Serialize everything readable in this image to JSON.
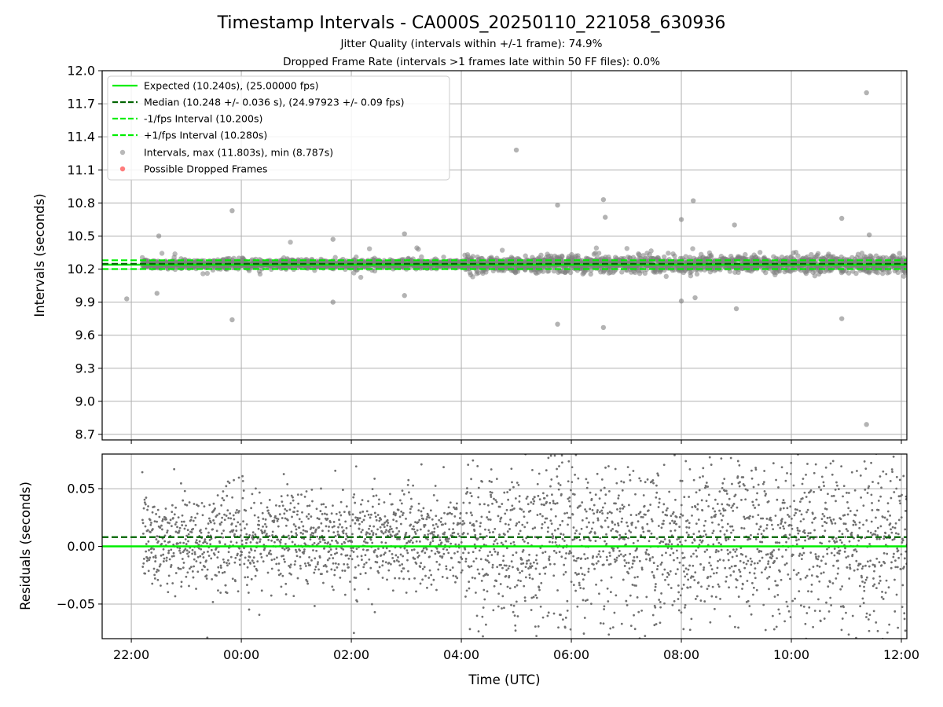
{
  "chart_data": [
    {
      "type": "scatter",
      "title": "Timestamp Intervals - CA000S_20250110_221058_630936",
      "subtitle_1": "Jitter Quality (intervals within +/-1 frame): 74.9%",
      "subtitle_2": "Dropped Frame Rate (intervals >1 frames late within 50 FF files): 0.0%",
      "xlabel": "",
      "ylabel": "Intervals (seconds)",
      "ylim": [
        8.65,
        12.0
      ],
      "xlim_hours_from_midnight_jan10": [
        21.47,
        36.1
      ],
      "yticks": [
        "8.7",
        "9.0",
        "9.3",
        "9.6",
        "9.9",
        "10.2",
        "10.5",
        "10.8",
        "11.1",
        "11.4",
        "11.7",
        "12.0"
      ],
      "grid": true,
      "legend_position": "upper left",
      "colors": {
        "expected": "#00ee00",
        "median": "#006400",
        "interval_bounds": "#00ee00",
        "points": "#808080",
        "dropped": "#ff4444"
      },
      "series": [
        {
          "name": "Expected (10.240s), (25.00000 fps)",
          "kind": "hline",
          "value": 10.24
        },
        {
          "name": "Median (10.248 +/- 0.036 s), (24.97923 +/- 0.09 fps)",
          "kind": "hline-dashed",
          "value": 10.248
        },
        {
          "name": "-1/fps Interval (10.200s)",
          "kind": "hline-dashed",
          "value": 10.2
        },
        {
          "name": "+1/fps Interval (10.280s)",
          "kind": "hline-dashed",
          "value": 10.28
        },
        {
          "name": "Intervals, max (11.803s), min (8.787s)",
          "kind": "scatter",
          "outliers": [
            {
              "t": "21:55",
              "y": 9.93
            },
            {
              "t": "22:30",
              "y": 10.5
            },
            {
              "t": "22:28",
              "y": 9.98
            },
            {
              "t": "23:50",
              "y": 10.73
            },
            {
              "t": "23:50",
              "y": 9.74
            },
            {
              "t": "01:40",
              "y": 9.9
            },
            {
              "t": "01:40",
              "y": 10.47
            },
            {
              "t": "02:58",
              "y": 10.52
            },
            {
              "t": "02:58",
              "y": 9.96
            },
            {
              "t": "05:00",
              "y": 11.28
            },
            {
              "t": "05:45",
              "y": 10.78
            },
            {
              "t": "05:45",
              "y": 9.7
            },
            {
              "t": "06:35",
              "y": 10.83
            },
            {
              "t": "06:37",
              "y": 10.67
            },
            {
              "t": "06:35",
              "y": 9.67
            },
            {
              "t": "08:00",
              "y": 10.65
            },
            {
              "t": "08:00",
              "y": 9.91
            },
            {
              "t": "08:13",
              "y": 10.82
            },
            {
              "t": "08:15",
              "y": 9.94
            },
            {
              "t": "08:58",
              "y": 10.6
            },
            {
              "t": "09:00",
              "y": 9.84
            },
            {
              "t": "10:55",
              "y": 10.66
            },
            {
              "t": "10:55",
              "y": 9.75
            },
            {
              "t": "11:22",
              "y": 11.8
            },
            {
              "t": "11:22",
              "y": 8.79
            },
            {
              "t": "11:25",
              "y": 10.51
            }
          ]
        },
        {
          "name": "Possible Dropped Frames",
          "kind": "scatter",
          "values": []
        }
      ]
    },
    {
      "type": "scatter",
      "xlabel": "Time (UTC)",
      "ylabel": "Residuals (seconds)",
      "ylim": [
        -0.08,
        0.08
      ],
      "yticks": [
        "−0.05",
        "0.00",
        "0.05"
      ],
      "xticks": [
        "22:00",
        "00:00",
        "02:00",
        "04:00",
        "06:00",
        "08:00",
        "10:00",
        "12:00"
      ],
      "grid": true,
      "series": [
        {
          "kind": "hline",
          "value": 0.0
        },
        {
          "kind": "hline-dashed",
          "value": 0.008
        },
        {
          "kind": "scatter",
          "description_spread": "residuals about 0 with approx sigma 0.02 before 04:00 and 0.036 after"
        }
      ]
    }
  ]
}
